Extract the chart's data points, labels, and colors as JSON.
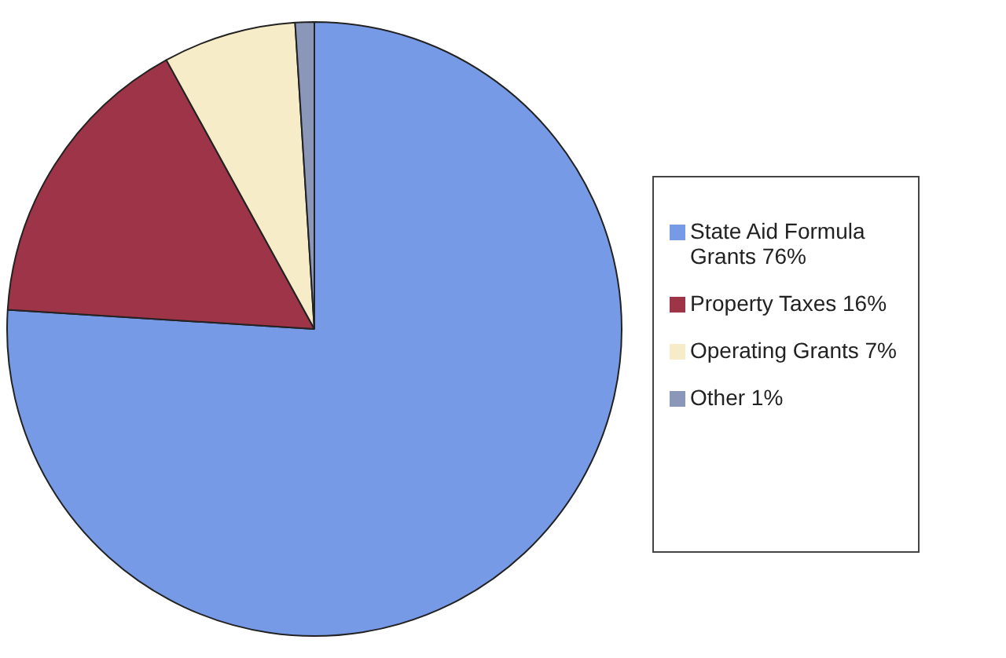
{
  "chart_data": {
    "type": "pie",
    "categories": [
      "State Aid Formula Grants 76%",
      "Property Taxes 16%",
      "Operating Grants 7%",
      "Other 1%"
    ],
    "values": [
      76,
      16,
      7,
      1
    ],
    "colors": [
      "#779ae6",
      "#9e3447",
      "#f6edc8",
      "#8a97b8"
    ],
    "legend": "right"
  }
}
